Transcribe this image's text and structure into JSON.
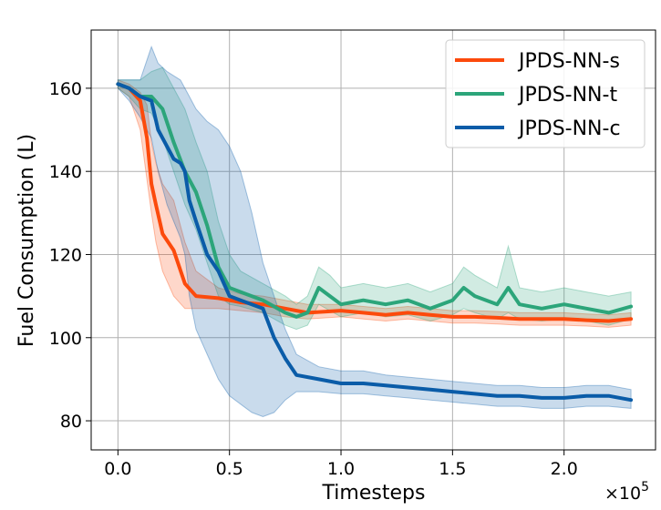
{
  "chart_data": {
    "type": "line",
    "title": "",
    "xlabel": "Timesteps",
    "ylabel": "Fuel Consumption (L)",
    "x_multiplier_label": "×10",
    "x_multiplier_exp": "5",
    "xlim": [
      -0.12,
      2.41
    ],
    "ylim": [
      73,
      174
    ],
    "xticks": [
      0.0,
      0.5,
      1.0,
      1.5,
      2.0
    ],
    "xtick_labels": [
      "0.0",
      "0.5",
      "1.0",
      "1.5",
      "2.0"
    ],
    "yticks": [
      80,
      100,
      120,
      140,
      160
    ],
    "ytick_labels": [
      "80",
      "100",
      "120",
      "140",
      "160"
    ],
    "grid": true,
    "legend_position": "top-right",
    "series": [
      {
        "name": "JPDS-NN-s",
        "color": "#fc4a0c",
        "x": [
          0.0,
          0.05,
          0.1,
          0.13,
          0.15,
          0.17,
          0.2,
          0.25,
          0.3,
          0.35,
          0.45,
          0.55,
          0.65,
          0.75,
          0.85,
          1.0,
          1.1,
          1.2,
          1.3,
          1.4,
          1.5,
          1.6,
          1.7,
          1.8,
          1.9,
          2.0,
          2.1,
          2.2,
          2.3
        ],
        "y": [
          161,
          160,
          157,
          148,
          137,
          132,
          125,
          121,
          113,
          110,
          109.5,
          108.5,
          108,
          107,
          106,
          106.5,
          106,
          105.5,
          106,
          105.5,
          105,
          105,
          104.8,
          104.5,
          104.5,
          104.5,
          104.2,
          104,
          104.5
        ],
        "lower": [
          160,
          158,
          150,
          138,
          130,
          123,
          116,
          110,
          107,
          107,
          107,
          106.5,
          106,
          105,
          104.5,
          105,
          104.5,
          104,
          104.5,
          104,
          103.5,
          103.5,
          103.3,
          103,
          103,
          103,
          102.8,
          102.5,
          103
        ],
        "upper": [
          162,
          161,
          159,
          156,
          147,
          142,
          137,
          133,
          123,
          116,
          112,
          110.5,
          110,
          109,
          108,
          108,
          107.5,
          107,
          107.5,
          107,
          106.5,
          106.5,
          106.3,
          106,
          106,
          106,
          105.7,
          105.5,
          106
        ]
      },
      {
        "name": "JPDS-NN-t",
        "color": "#2ca57a",
        "x": [
          0.0,
          0.05,
          0.1,
          0.15,
          0.2,
          0.25,
          0.3,
          0.35,
          0.4,
          0.45,
          0.5,
          0.55,
          0.65,
          0.75,
          0.8,
          0.85,
          0.9,
          0.95,
          1.0,
          1.1,
          1.2,
          1.3,
          1.4,
          1.5,
          1.55,
          1.6,
          1.7,
          1.75,
          1.8,
          1.9,
          2.0,
          2.1,
          2.2,
          2.3
        ],
        "y": [
          161,
          160,
          158,
          158,
          155,
          147,
          140,
          135,
          127,
          117,
          112,
          111,
          109,
          106,
          105,
          106,
          112,
          110,
          108,
          109,
          108,
          109,
          107,
          109,
          112,
          110,
          108,
          112,
          108,
          107,
          108,
          107,
          106,
          107.5
        ],
        "lower": [
          160,
          158,
          155,
          154,
          148,
          140,
          132,
          126,
          118,
          110,
          108,
          107.5,
          106,
          103,
          102,
          103,
          108,
          106.5,
          105,
          106,
          105,
          105.5,
          104,
          105.5,
          107,
          106,
          104.5,
          106,
          104.5,
          104,
          104.5,
          104,
          103,
          104.5
        ],
        "upper": [
          162,
          162,
          162,
          164,
          165,
          160,
          155,
          147,
          140,
          128,
          120,
          116,
          113,
          110,
          108,
          110,
          117,
          115,
          112,
          113,
          112,
          113,
          111,
          113,
          117,
          115,
          112,
          122,
          112,
          111,
          112,
          111,
          110,
          111
        ]
      },
      {
        "name": "JPDS-NN-c",
        "color": "#0a5ca8",
        "x": [
          0.0,
          0.05,
          0.1,
          0.15,
          0.18,
          0.22,
          0.25,
          0.28,
          0.3,
          0.32,
          0.35,
          0.4,
          0.45,
          0.5,
          0.55,
          0.6,
          0.65,
          0.7,
          0.75,
          0.8,
          0.9,
          1.0,
          1.1,
          1.2,
          1.3,
          1.4,
          1.5,
          1.6,
          1.7,
          1.8,
          1.9,
          2.0,
          2.1,
          2.2,
          2.3
        ],
        "y": [
          161,
          160,
          158,
          157,
          150,
          146,
          143,
          142,
          140,
          133,
          128,
          120,
          116,
          110,
          109,
          108,
          107,
          100,
          95,
          91,
          90,
          89,
          89,
          88.5,
          88,
          87.5,
          87,
          86.5,
          86,
          86,
          85.5,
          85.5,
          86,
          86,
          85
        ],
        "lower": [
          160,
          157,
          153,
          148,
          140,
          132,
          128,
          124,
          120,
          110,
          102,
          96,
          90,
          86,
          84,
          82,
          81,
          82,
          85,
          87,
          87,
          86.5,
          86.5,
          86,
          85.5,
          85,
          84.5,
          84,
          83.5,
          83.5,
          83,
          83,
          83.5,
          83.5,
          83
        ],
        "upper": [
          162,
          162,
          162,
          170,
          166,
          164,
          163,
          162,
          160,
          158,
          155,
          152,
          150,
          146,
          140,
          130,
          118,
          110,
          102,
          96,
          93,
          92,
          92,
          91,
          90.5,
          90,
          89.5,
          89,
          88.5,
          88.5,
          88,
          88,
          88.5,
          88.5,
          87.5
        ]
      }
    ]
  }
}
